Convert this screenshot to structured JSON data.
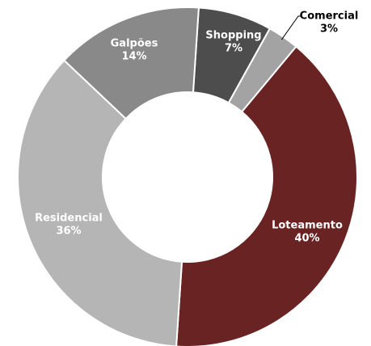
{
  "chart_data": {
    "type": "donut",
    "categories": [
      "Shopping",
      "Comercial",
      "Loteamento",
      "Residencial",
      "Galpões"
    ],
    "values": [
      7,
      3,
      40,
      36,
      14
    ],
    "value_labels": [
      "7%",
      "3%",
      "40%",
      "36%",
      "14%"
    ],
    "colors": [
      "#4d4d4d",
      "#a3a3a3",
      "#692322",
      "#b5b5b5",
      "#898989"
    ]
  }
}
